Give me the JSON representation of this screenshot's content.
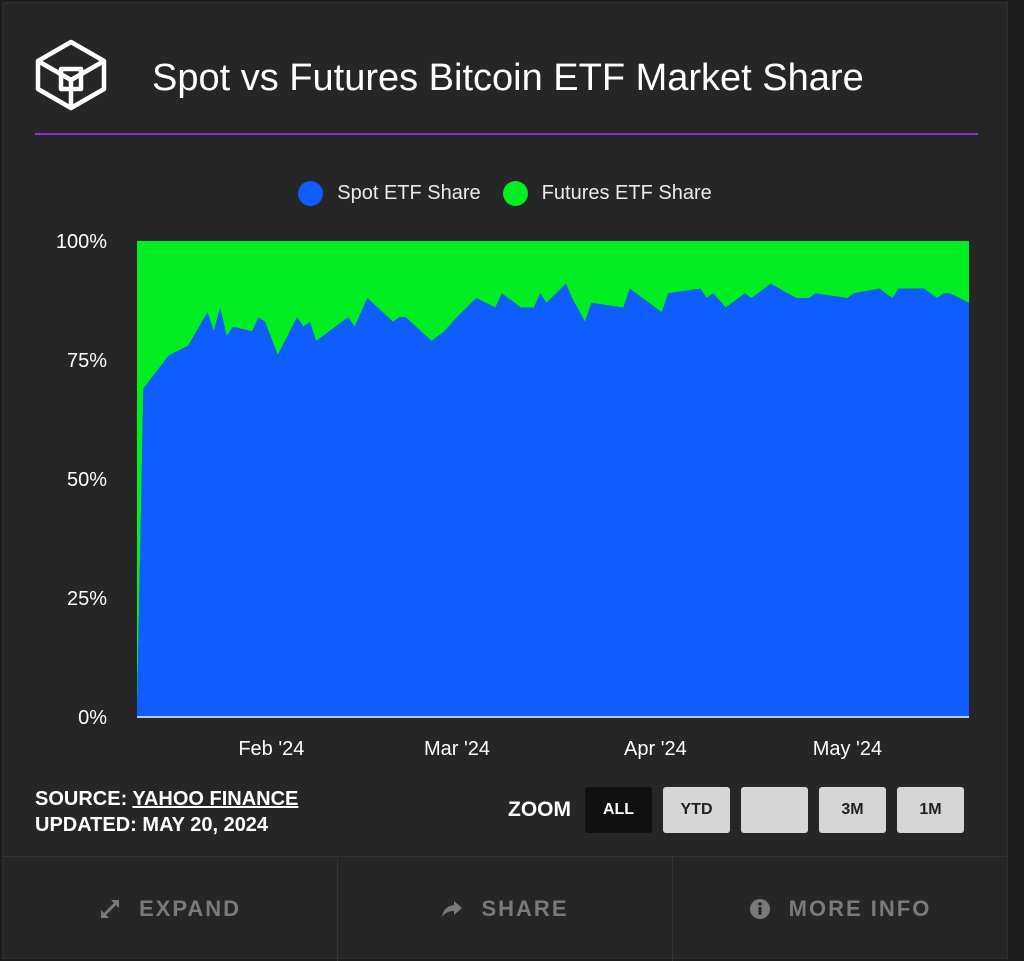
{
  "header": {
    "title": "Spot vs Futures Bitcoin ETF Market Share"
  },
  "colors": {
    "accent": "#8a2be2",
    "spot": "#0f5cff",
    "futures": "#00ee22"
  },
  "footer": {
    "source_prefix": "SOURCE: ",
    "source_link": "YAHOO FINANCE",
    "updated": "UPDATED: MAY 20, 2024"
  },
  "zoom": {
    "label": "ZOOM",
    "buttons": [
      {
        "label": "ALL",
        "active": true
      },
      {
        "label": "YTD",
        "active": false
      },
      {
        "label": "",
        "active": false
      },
      {
        "label": "3M",
        "active": false
      },
      {
        "label": "1M",
        "active": false
      }
    ]
  },
  "actions": [
    {
      "label": "EXPAND",
      "icon": "expand-icon"
    },
    {
      "label": "SHARE",
      "icon": "share-icon"
    },
    {
      "label": "MORE INFO",
      "icon": "info-icon"
    }
  ],
  "chart_data": {
    "type": "area",
    "stacked": true,
    "title": "",
    "xlabel": "",
    "ylabel": "",
    "ylim": [
      0,
      100
    ],
    "yticks": [
      "0%",
      "25%",
      "50%",
      "75%",
      "100%"
    ],
    "xticks": [
      {
        "label": "Feb '24",
        "date": "2024-02-01"
      },
      {
        "label": "Mar '24",
        "date": "2024-03-01"
      },
      {
        "label": "Apr '24",
        "date": "2024-04-01"
      },
      {
        "label": "May '24",
        "date": "2024-05-01"
      }
    ],
    "legend_position": "top-center",
    "x": [
      "2024-01-11",
      "2024-01-12",
      "2024-01-16",
      "2024-01-19",
      "2024-01-22",
      "2024-01-23",
      "2024-01-24",
      "2024-01-25",
      "2024-01-26",
      "2024-01-29",
      "2024-01-30",
      "2024-01-31",
      "2024-02-02",
      "2024-02-05",
      "2024-02-06",
      "2024-02-07",
      "2024-02-08",
      "2024-02-13",
      "2024-02-14",
      "2024-02-16",
      "2024-02-20",
      "2024-02-21",
      "2024-02-22",
      "2024-02-26",
      "2024-02-28",
      "2024-03-01",
      "2024-03-04",
      "2024-03-07",
      "2024-03-08",
      "2024-03-11",
      "2024-03-13",
      "2024-03-14",
      "2024-03-15",
      "2024-03-18",
      "2024-03-19",
      "2024-03-21",
      "2024-03-22",
      "2024-03-27",
      "2024-03-28",
      "2024-04-02",
      "2024-04-03",
      "2024-04-08",
      "2024-04-09",
      "2024-04-10",
      "2024-04-12",
      "2024-04-15",
      "2024-04-16",
      "2024-04-18",
      "2024-04-19",
      "2024-04-23",
      "2024-04-25",
      "2024-04-26",
      "2024-05-01",
      "2024-05-02",
      "2024-05-06",
      "2024-05-08",
      "2024-05-09",
      "2024-05-13",
      "2024-05-15",
      "2024-05-16",
      "2024-05-17",
      "2024-05-20"
    ],
    "series": [
      {
        "name": "Spot ETF Share",
        "values": [
          1,
          69,
          76,
          78,
          85,
          81,
          86,
          80,
          82,
          81,
          84,
          83,
          76,
          84,
          82,
          83,
          79,
          84,
          82,
          88,
          83,
          84,
          84,
          79,
          81,
          84,
          88,
          86,
          89,
          86,
          86,
          89,
          87,
          91,
          88,
          83,
          87,
          86,
          90,
          85,
          89,
          90,
          88,
          89,
          86,
          89,
          88,
          90,
          91,
          88,
          88,
          89,
          88,
          89,
          90,
          88,
          90,
          90,
          88,
          89,
          89,
          87
        ]
      },
      {
        "name": "Futures ETF Share",
        "values": [
          99,
          31,
          24,
          22,
          15,
          19,
          14,
          20,
          18,
          19,
          16,
          17,
          24,
          16,
          18,
          17,
          21,
          16,
          18,
          12,
          17,
          16,
          16,
          21,
          19,
          16,
          12,
          14,
          11,
          14,
          14,
          11,
          13,
          9,
          12,
          17,
          13,
          14,
          10,
          15,
          11,
          10,
          12,
          11,
          14,
          11,
          12,
          10,
          9,
          12,
          12,
          11,
          12,
          11,
          10,
          12,
          10,
          10,
          12,
          11,
          11,
          13
        ]
      }
    ]
  }
}
